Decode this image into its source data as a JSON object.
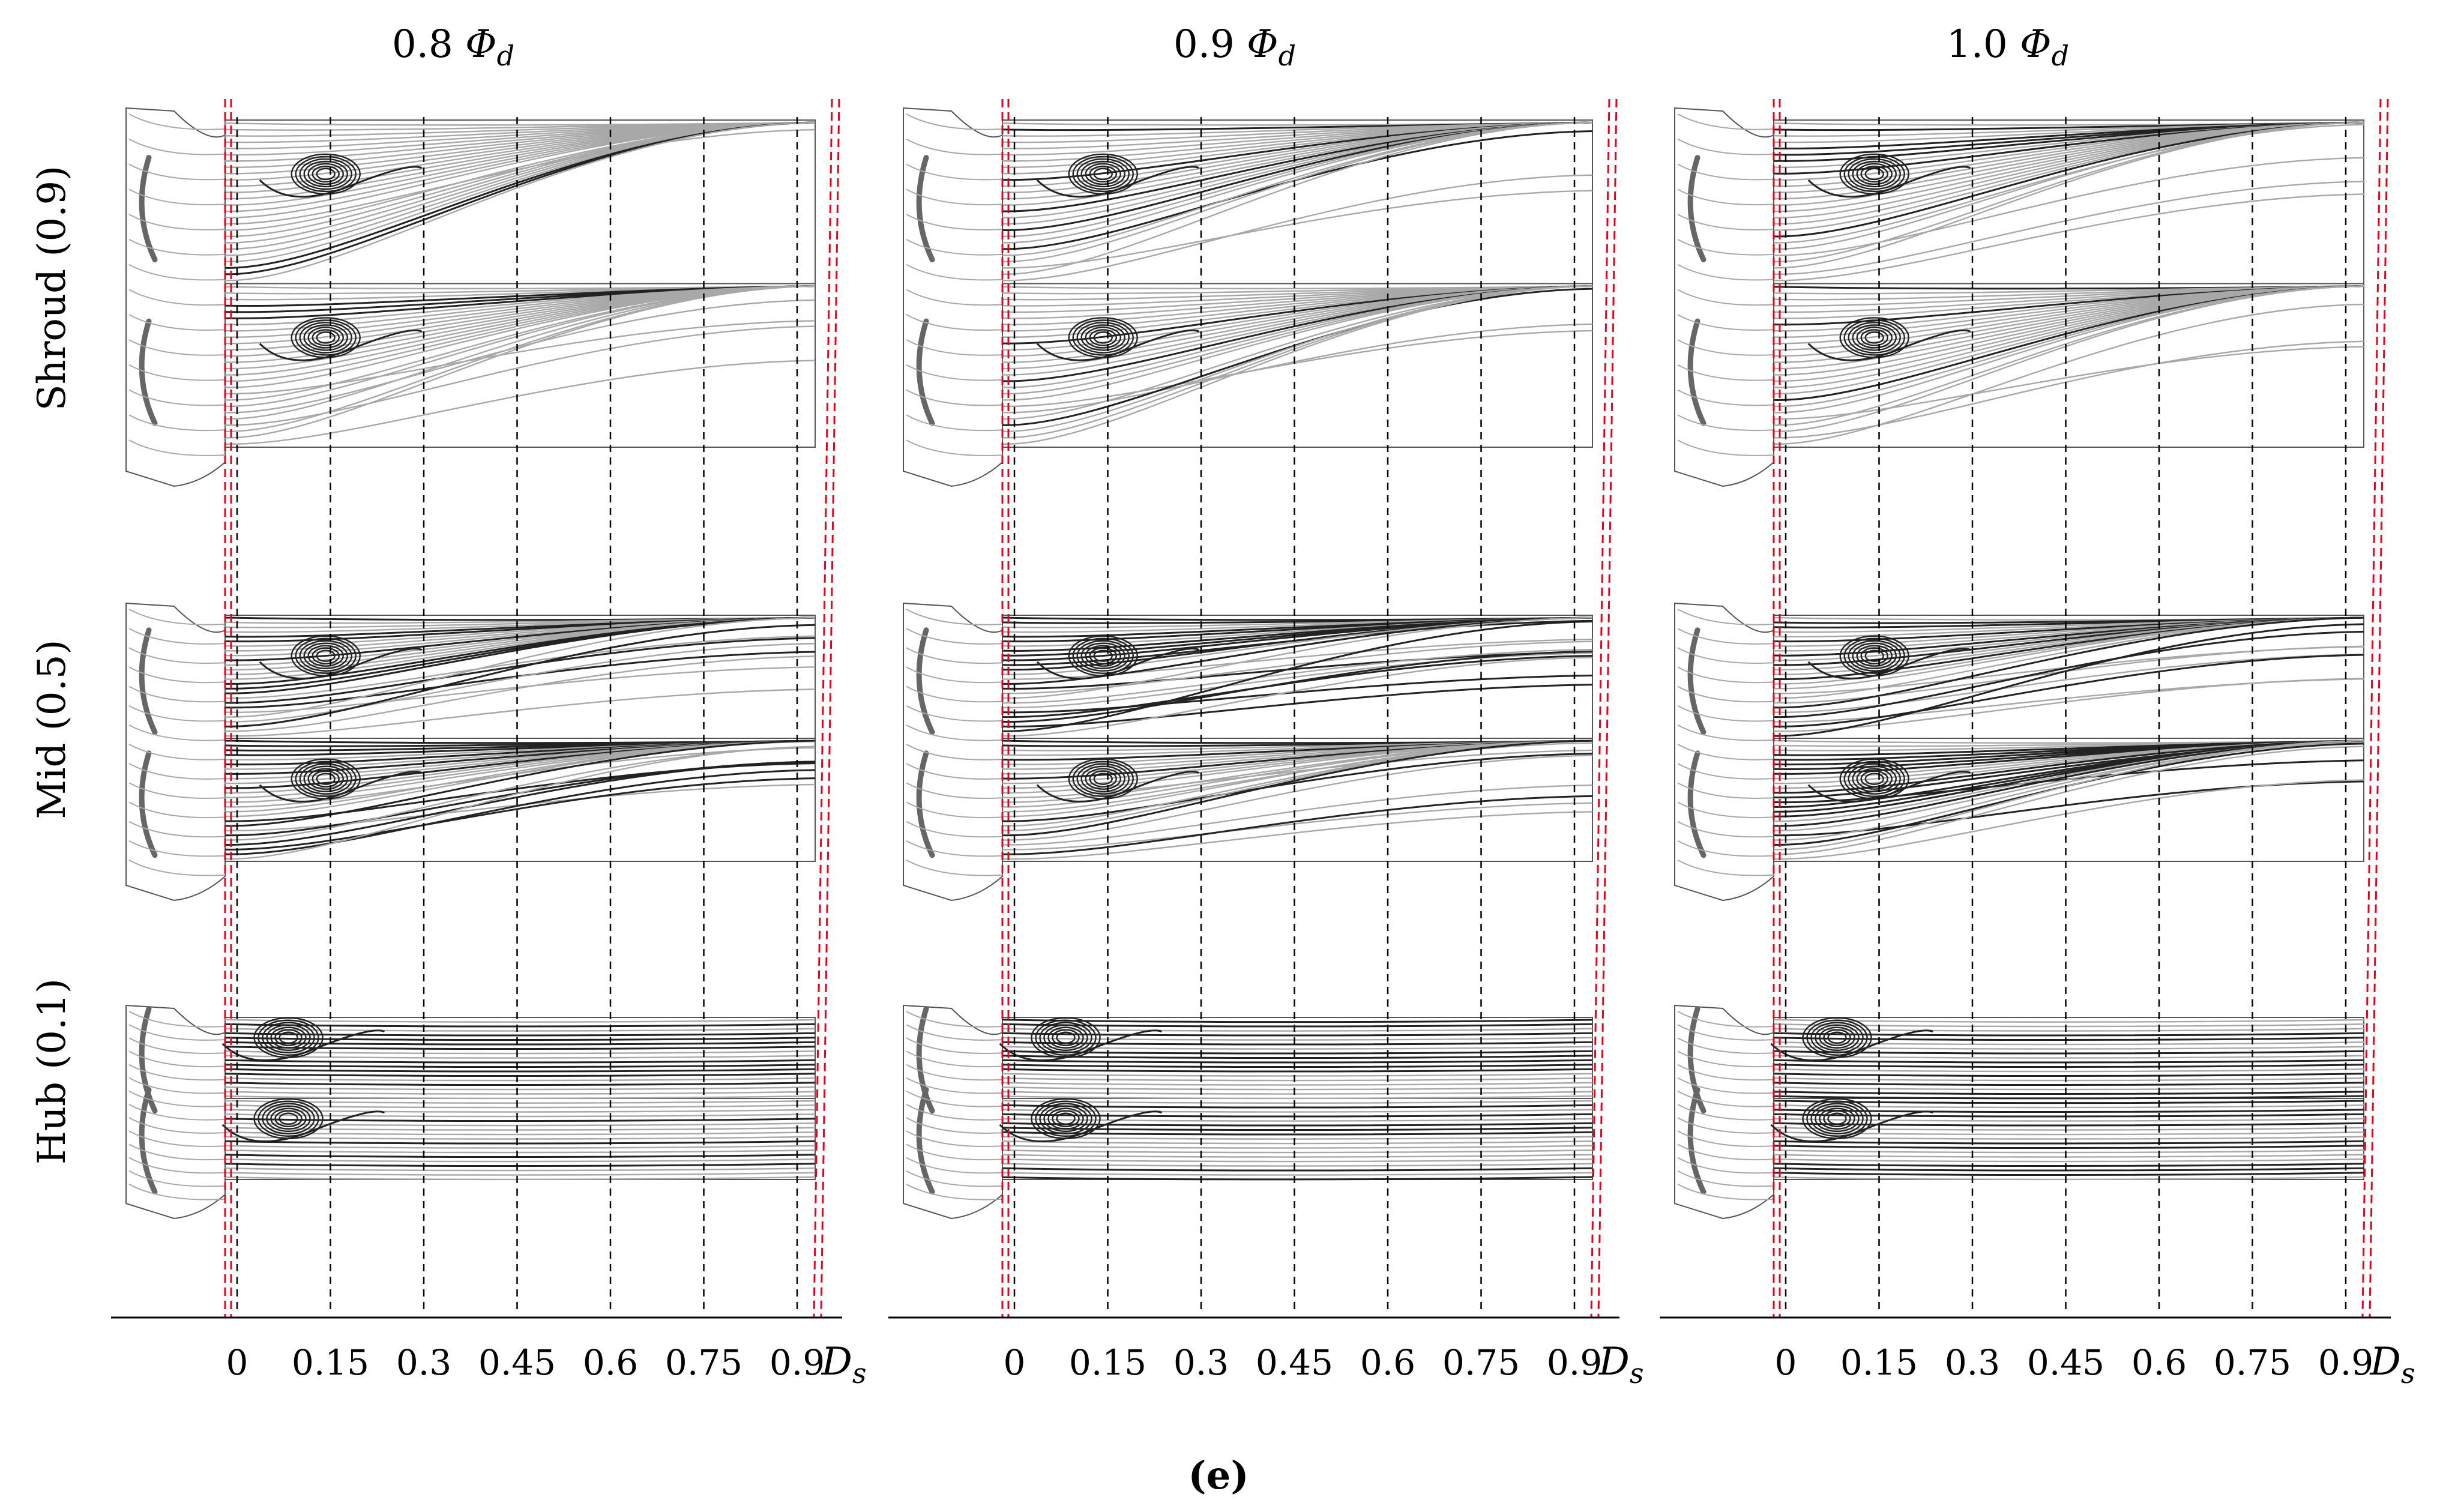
{
  "figure_caption": "(e)",
  "columns": [
    {
      "title_value": "0.8",
      "title_symbol": "Φ",
      "title_subscript": "d"
    },
    {
      "title_value": "0.9",
      "title_symbol": "Φ",
      "title_subscript": "d"
    },
    {
      "title_value": "1.0",
      "title_symbol": "Φ",
      "title_subscript": "d"
    }
  ],
  "rows": [
    {
      "label": "Shroud (0.9)"
    },
    {
      "label": "Mid (0.5)"
    },
    {
      "label": "Hub (0.1)"
    }
  ],
  "axis": {
    "ticks": [
      "0",
      "0.15",
      "0.3",
      "0.45",
      "0.6",
      "0.75",
      "0.9"
    ],
    "unit_symbol": "D",
    "unit_subscript": "s"
  },
  "chart_data": {
    "type": "streamline-panels",
    "title": "(e)",
    "columns": [
      "0.8 Φd",
      "0.9 Φd",
      "1.0 Φd"
    ],
    "rows": [
      "Shroud (0.9)",
      "Mid (0.5)",
      "Hub (0.1)"
    ],
    "x_axis_unit": "Ds",
    "x_ticks": [
      0,
      0.15,
      0.3,
      0.45,
      0.6,
      0.75,
      0.9
    ],
    "reference_lines": "dashed black at each tick; dashed red at blade trailing edge and at ~0.92 Ds"
  },
  "colors": {
    "streamline_dark": "#222222",
    "streamline_light": "#a8a8a8",
    "ref_line": "#000000",
    "ref_line_red": "#e8001c",
    "outline": "#555555"
  }
}
